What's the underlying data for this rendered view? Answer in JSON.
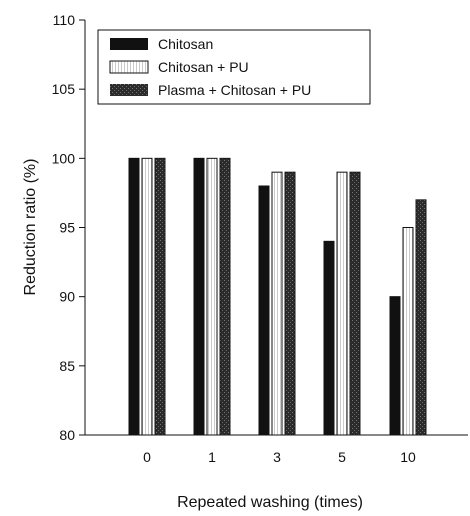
{
  "chart_data": {
    "type": "bar",
    "title": "",
    "xlabel": "Repeated washing (times)",
    "ylabel": "Reduction ratio (%)",
    "categories": [
      "0",
      "1",
      "3",
      "5",
      "10"
    ],
    "ylim": [
      80,
      110
    ],
    "yticks": [
      80,
      85,
      90,
      95,
      100,
      105,
      110
    ],
    "grid": false,
    "legend_position": "top-left",
    "series": [
      {
        "name": "Chitosan",
        "values": [
          100,
          100,
          98,
          94,
          90
        ],
        "color": "#111111",
        "pattern": "solid"
      },
      {
        "name": "Chitosan + PU",
        "values": [
          100,
          100,
          99,
          99,
          95
        ],
        "color": "#ffffff",
        "pattern": "white-vertical-lines"
      },
      {
        "name": "Plasma + Chitosan + PU",
        "values": [
          100,
          100,
          99,
          99,
          97
        ],
        "color": "#333333",
        "pattern": "dark-stipple"
      }
    ]
  }
}
